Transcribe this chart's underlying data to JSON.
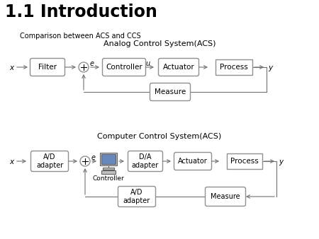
{
  "title": "1.1 Introduction",
  "subtitle": "Comparison between ACS and CCS",
  "acs_title": "Analog Control System(ACS)",
  "ccs_title": "Computer Control System(ACS)",
  "bg_color": "#ffffff",
  "box_edge_color": "#909090",
  "box_fill_color": "#ffffff",
  "arrow_color": "#707070",
  "line_color": "#707070"
}
